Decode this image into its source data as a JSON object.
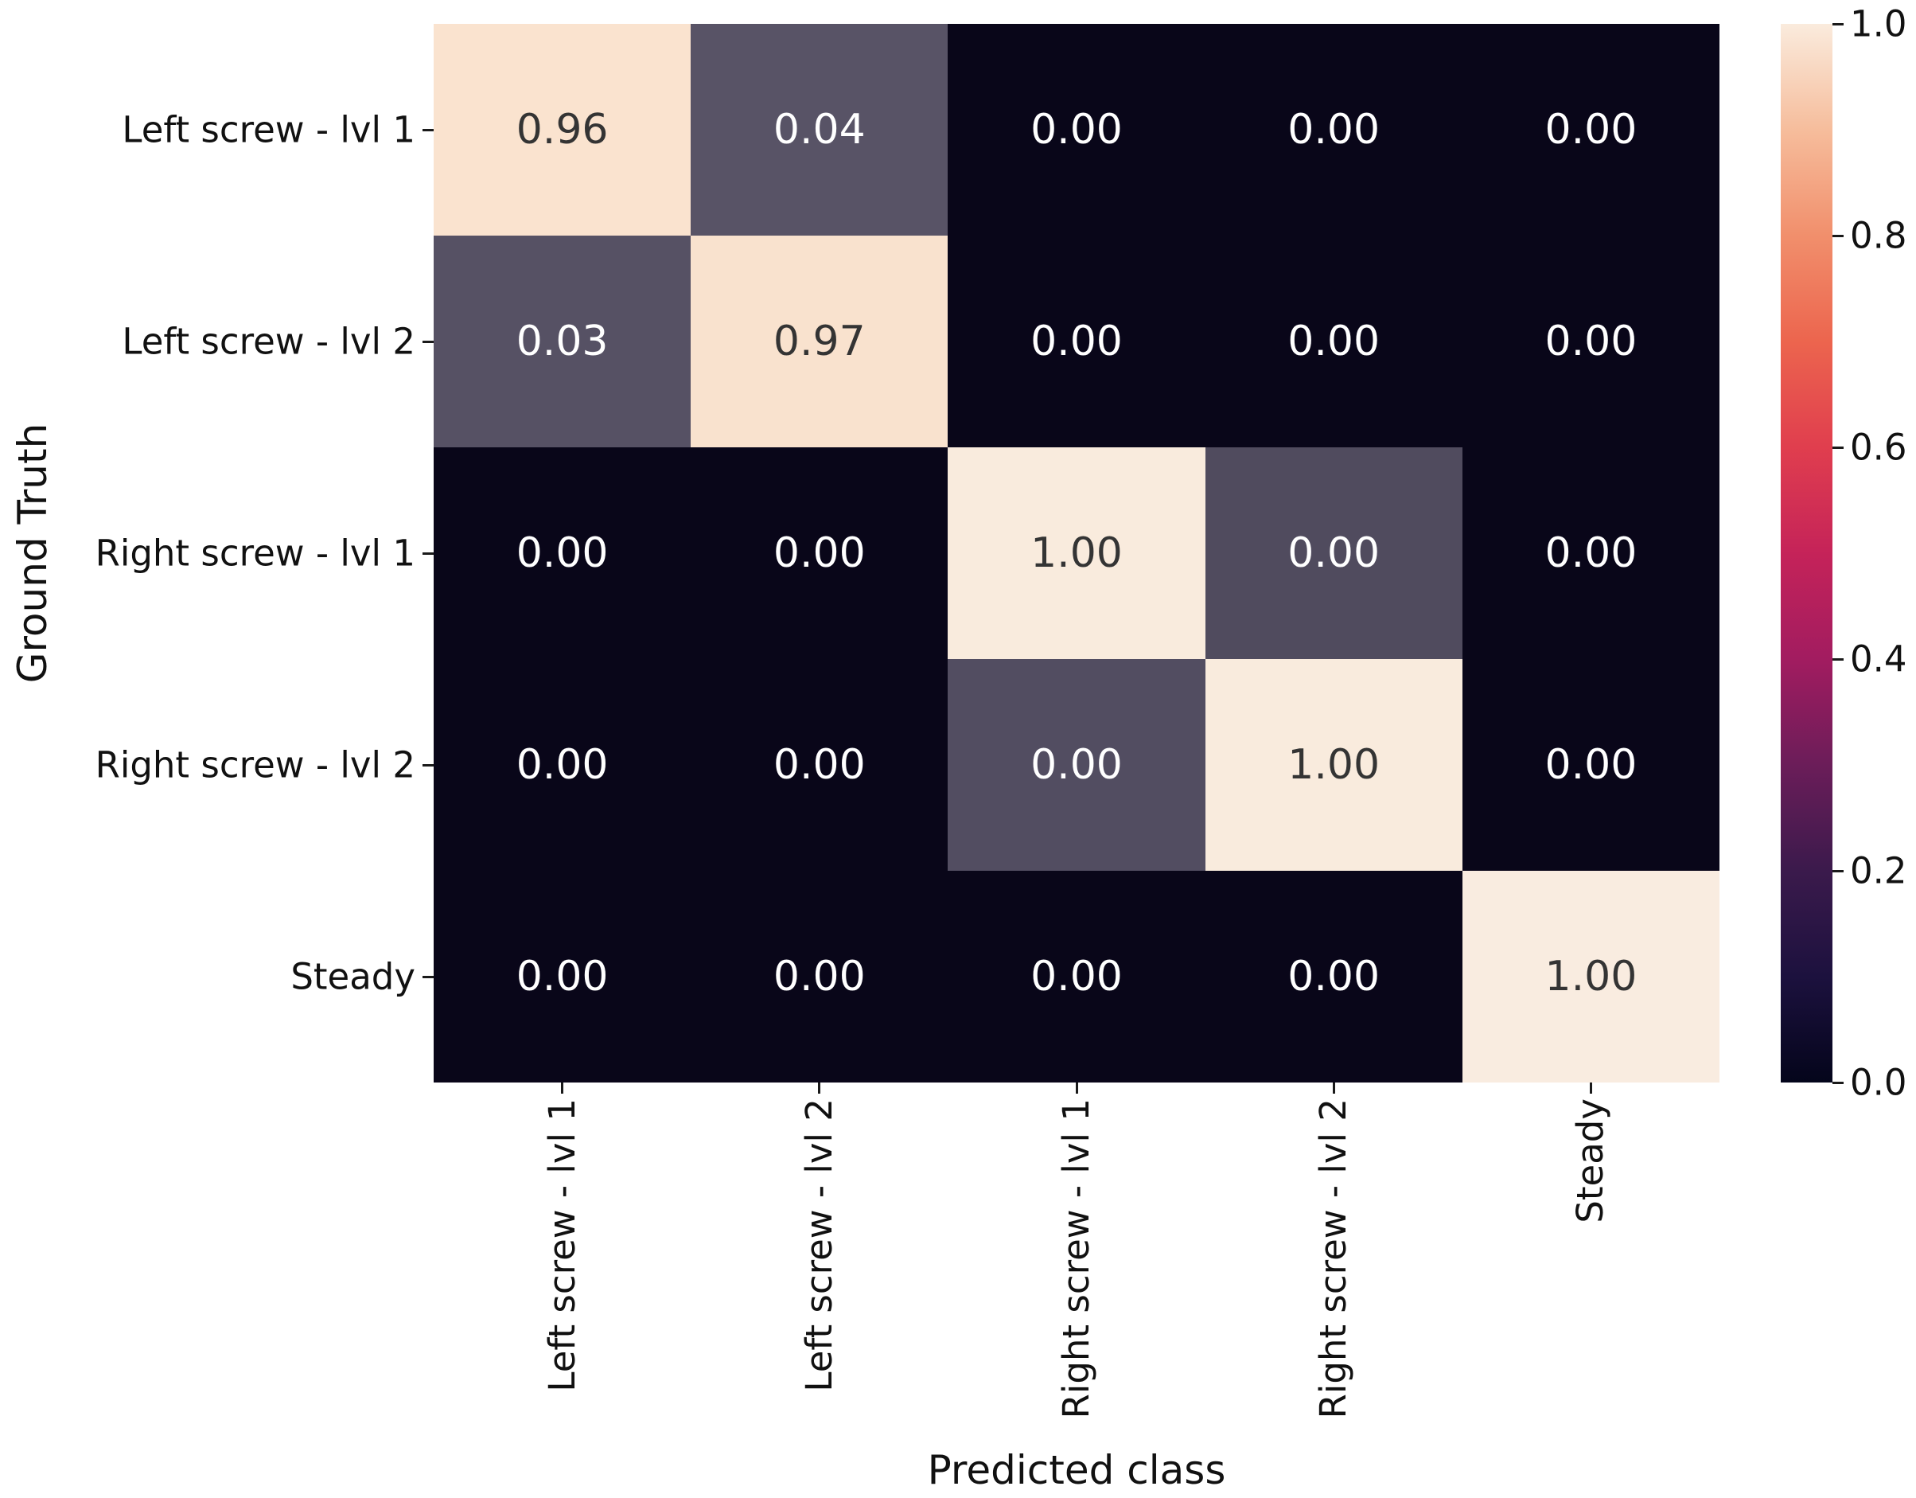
{
  "figure": {
    "background": "#ffffff",
    "text_color": "#111111",
    "tick_color": "#1a1a1a"
  },
  "chart_data": {
    "type": "heatmap",
    "title": "",
    "xlabel": "Predicted class",
    "ylabel": "Ground Truth",
    "x_tick_labels": [
      "Left screw - lvl 1",
      "Left screw - lvl 2",
      "Right screw - lvl 1",
      "Right screw - lvl 2",
      "Steady"
    ],
    "y_tick_labels": [
      "Left screw - lvl 1",
      "Left screw - lvl 2",
      "Right screw - lvl 1",
      "Right screw - lvl 2",
      "Steady"
    ],
    "matrix": [
      [
        0.96,
        0.04,
        0.0,
        0.0,
        0.0
      ],
      [
        0.03,
        0.97,
        0.0,
        0.0,
        0.0
      ],
      [
        0.0,
        0.0,
        1.0,
        0.0,
        0.0
      ],
      [
        0.0,
        0.0,
        0.0,
        1.0,
        0.0
      ],
      [
        0.0,
        0.0,
        0.0,
        0.0,
        1.0
      ]
    ],
    "cell_labels": [
      [
        "0.96",
        "0.04",
        "0.00",
        "0.00",
        "0.00"
      ],
      [
        "0.03",
        "0.97",
        "0.00",
        "0.00",
        "0.00"
      ],
      [
        "0.00",
        "0.00",
        "1.00",
        "0.00",
        "0.00"
      ],
      [
        "0.00",
        "0.00",
        "0.00",
        "1.00",
        "0.00"
      ],
      [
        "0.00",
        "0.00",
        "0.00",
        "0.00",
        "1.00"
      ]
    ],
    "cell_colors": [
      [
        "#fae3cf",
        "#585366",
        "#090619",
        "#090619",
        "#090619"
      ],
      [
        "#565164",
        "#f9e2ce",
        "#090619",
        "#090619",
        "#090619"
      ],
      [
        "#090619",
        "#090619",
        "#f9ebdd",
        "#504b5e",
        "#090619"
      ],
      [
        "#090619",
        "#090619",
        "#524d61",
        "#f9ebdd",
        "#090619"
      ],
      [
        "#090619",
        "#090619",
        "#090619",
        "#090619",
        "#f9ece0"
      ]
    ],
    "cell_text_colors": [
      [
        "#343434",
        "#ffffff",
        "#ffffff",
        "#ffffff",
        "#ffffff"
      ],
      [
        "#ffffff",
        "#343434",
        "#ffffff",
        "#ffffff",
        "#ffffff"
      ],
      [
        "#ffffff",
        "#ffffff",
        "#343434",
        "#ffffff",
        "#ffffff"
      ],
      [
        "#ffffff",
        "#ffffff",
        "#ffffff",
        "#343434",
        "#ffffff"
      ],
      [
        "#ffffff",
        "#ffffff",
        "#ffffff",
        "#ffffff",
        "#343434"
      ]
    ],
    "value_range": [
      0.0,
      1.0
    ],
    "grid": false,
    "colorbar": {
      "position": "right",
      "tick_labels": [
        "0.0",
        "0.2",
        "0.4",
        "0.6",
        "0.8",
        "1.0"
      ],
      "tick_values": [
        0.0,
        0.2,
        0.4,
        0.6,
        0.8,
        1.0
      ],
      "colormap_name": "rocket",
      "gradient_stops": [
        {
          "pos": 0.0,
          "color": "#04051B"
        },
        {
          "pos": 0.1,
          "color": "#1C113E"
        },
        {
          "pos": 0.2,
          "color": "#3B1A4C"
        },
        {
          "pos": 0.3,
          "color": "#6B1D59"
        },
        {
          "pos": 0.4,
          "color": "#A21C60"
        },
        {
          "pos": 0.5,
          "color": "#C52359"
        },
        {
          "pos": 0.6,
          "color": "#E03E4E"
        },
        {
          "pos": 0.7,
          "color": "#EC654E"
        },
        {
          "pos": 0.8,
          "color": "#F18F6C"
        },
        {
          "pos": 0.9,
          "color": "#F6BD9C"
        },
        {
          "pos": 1.0,
          "color": "#FAEBDD"
        }
      ]
    }
  }
}
